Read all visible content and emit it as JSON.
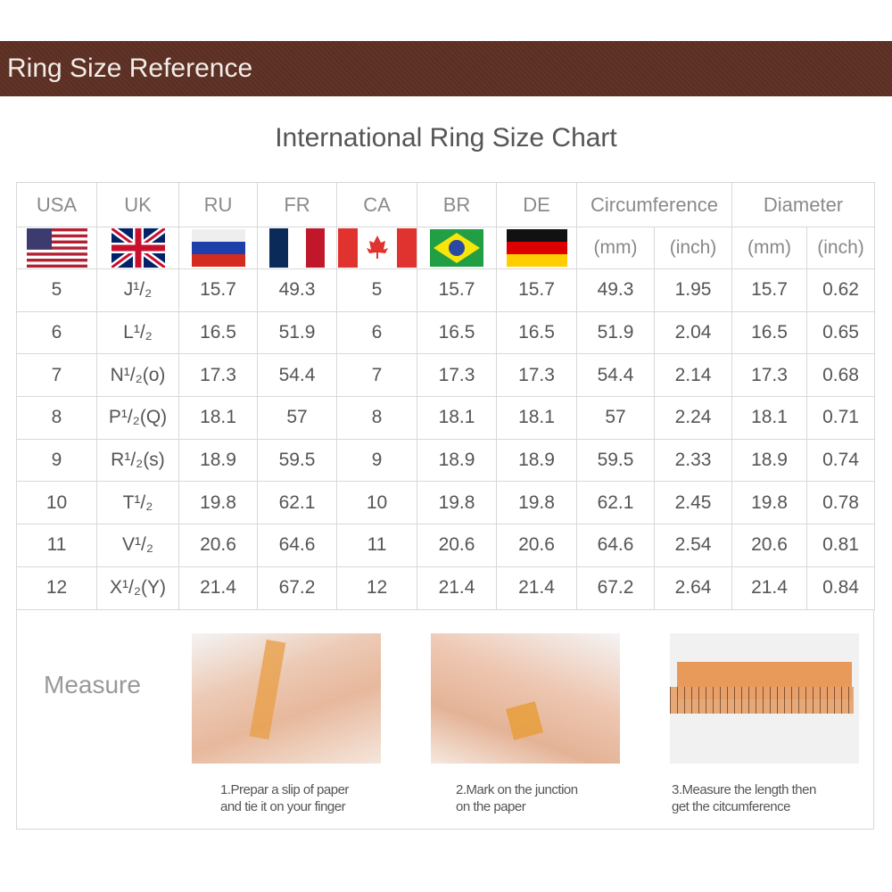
{
  "banner_title": "Ring Size Reference",
  "chart_title": "International Ring Size Chart",
  "headers": [
    "USA",
    "UK",
    "RU",
    "FR",
    "CA",
    "BR",
    "DE",
    "Circumference",
    "Diameter"
  ],
  "units": [
    "(mm)",
    "(inch)",
    "(mm)",
    "(inch)"
  ],
  "flags": [
    "us-flag",
    "uk-flag",
    "russia-flag",
    "france-flag",
    "canada-flag",
    "brazil-flag",
    "germany-flag"
  ],
  "rows": [
    [
      "5",
      "J¹/₂",
      "15.7",
      "49.3",
      "5",
      "15.7",
      "15.7",
      "49.3",
      "1.95",
      "15.7",
      "0.62"
    ],
    [
      "6",
      "L¹/₂",
      "16.5",
      "51.9",
      "6",
      "16.5",
      "16.5",
      "51.9",
      "2.04",
      "16.5",
      "0.65"
    ],
    [
      "7",
      "N¹/₂(o)",
      "17.3",
      "54.4",
      "7",
      "17.3",
      "17.3",
      "54.4",
      "2.14",
      "17.3",
      "0.68"
    ],
    [
      "8",
      "P¹/₂(Q)",
      "18.1",
      "57",
      "8",
      "18.1",
      "18.1",
      "57",
      "2.24",
      "18.1",
      "0.71"
    ],
    [
      "9",
      "R¹/₂(s)",
      "18.9",
      "59.5",
      "9",
      "18.9",
      "18.9",
      "59.5",
      "2.33",
      "18.9",
      "0.74"
    ],
    [
      "10",
      "T¹/₂",
      "19.8",
      "62.1",
      "10",
      "19.8",
      "19.8",
      "62.1",
      "2.45",
      "19.8",
      "0.78"
    ],
    [
      "11",
      "V¹/₂",
      "20.6",
      "64.6",
      "11",
      "20.6",
      "20.6",
      "64.6",
      "2.54",
      "20.6",
      "0.81"
    ],
    [
      "12",
      "X¹/₂(Y)",
      "21.4",
      "67.2",
      "12",
      "21.4",
      "21.4",
      "67.2",
      "2.64",
      "21.4",
      "0.84"
    ]
  ],
  "measure": {
    "label": "Measure",
    "steps": [
      {
        "line1": "1.Prepar a slip of paper",
        "line2": "and tie it on your finger"
      },
      {
        "line1": "2.Mark on the junction",
        "line2": "on the paper"
      },
      {
        "line1": "3.Measure the length then",
        "line2": "get the citcumference"
      }
    ]
  }
}
